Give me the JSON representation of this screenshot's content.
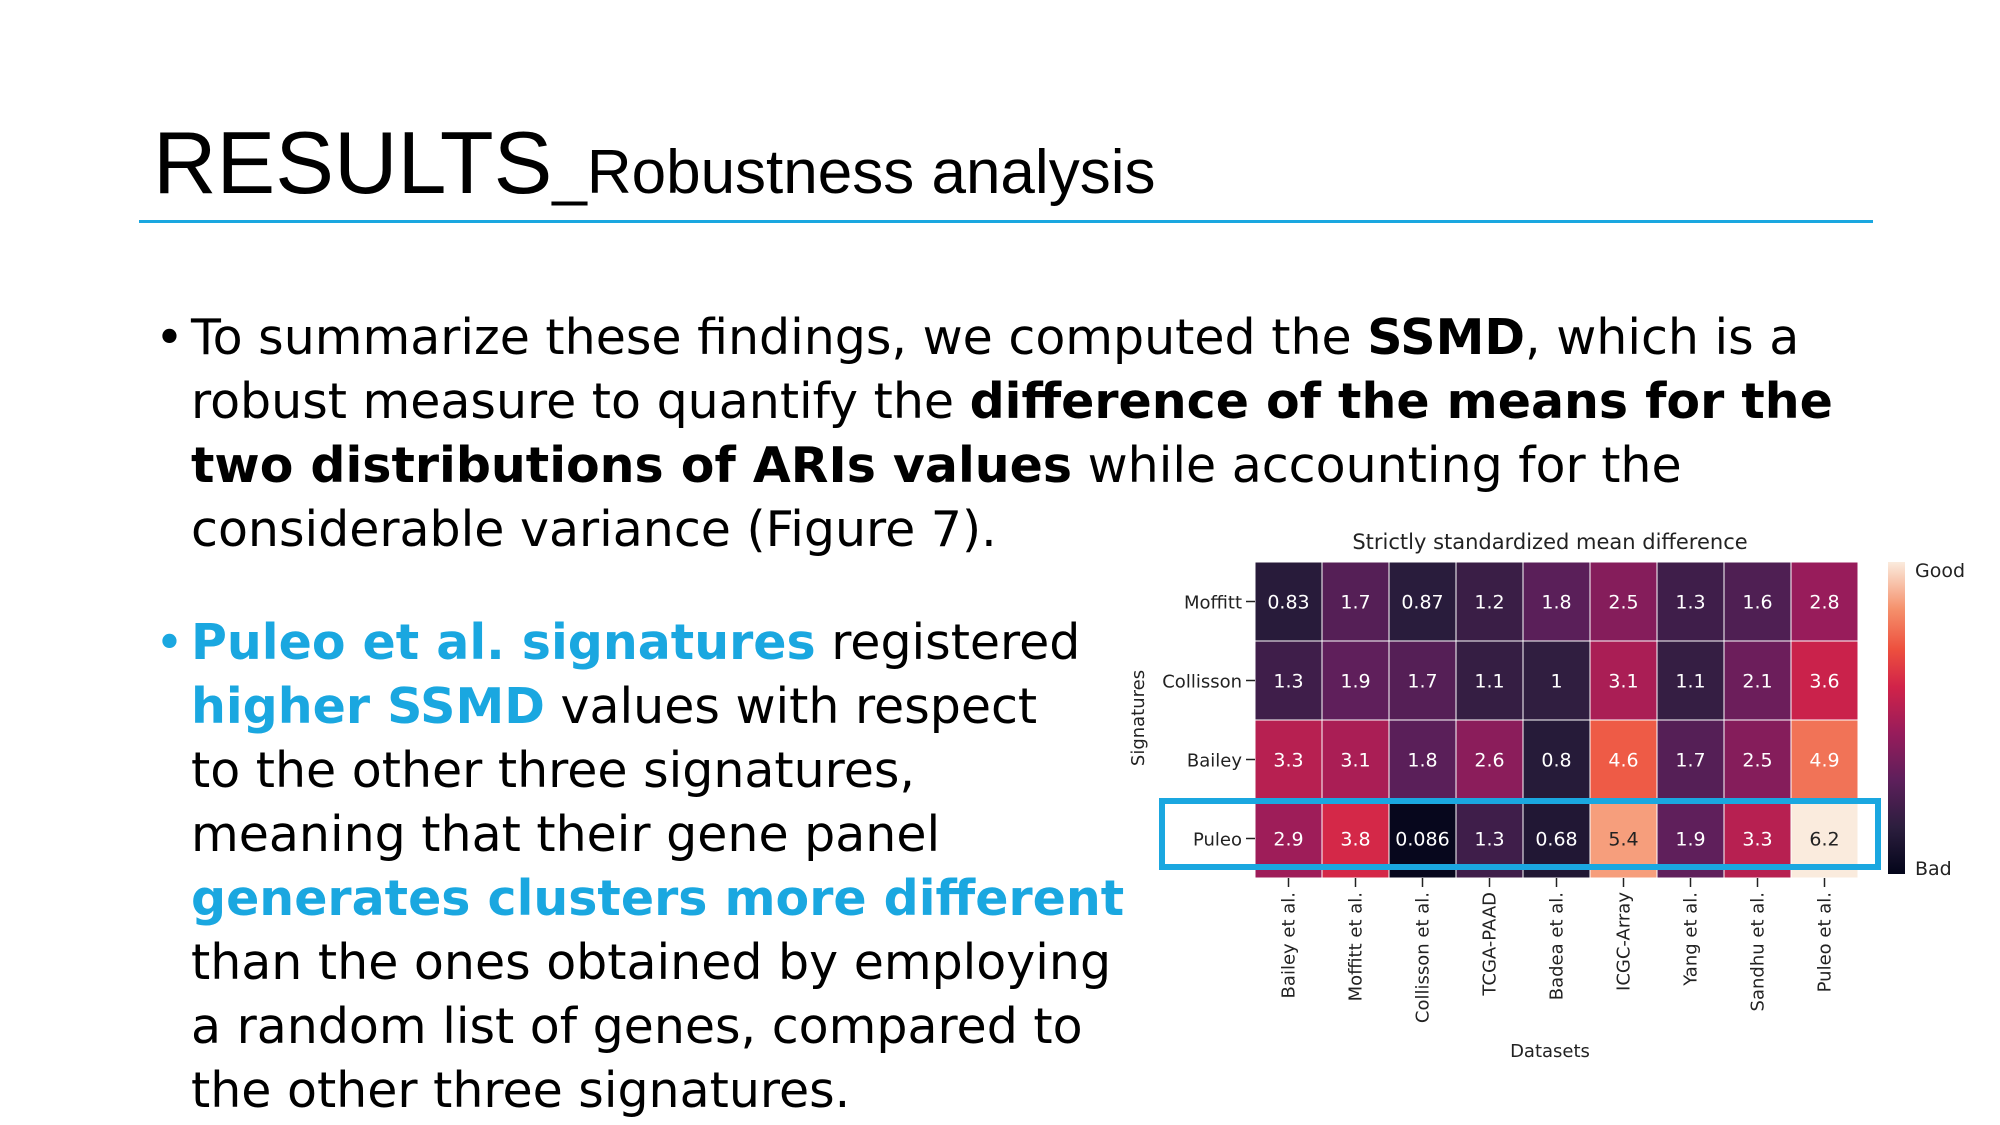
{
  "slide": {
    "title_main": "RESULTS",
    "title_sub": "_Robustness analysis",
    "bullet1": {
      "part1": "To summarize these findings, we computed the ",
      "bold1": "SSMD",
      "part2": ", which is a",
      "line2_a": "robust measure to quantify the ",
      "line2_bold": "difference of the means for the",
      "line3_bold": "two distributions of ARIs values",
      "line3_b": " while accounting for the",
      "line4": "considerable variance (Figure 7)."
    },
    "bullet2": {
      "hl1": "Puleo et al. signatures",
      "t1": " registered",
      "hl2": "higher SSMD",
      "t2": " values with respect",
      "l3": "to the other three signatures,",
      "l4": "meaning that their gene panel",
      "hl3": "generates clusters more different",
      "l6": "than the ones obtained by employing",
      "l7": "a random list of genes, compared to",
      "l8": "the other three signatures."
    },
    "colors": {
      "accent": "#1aa7e0",
      "highlight_box": "#1aa7e0"
    }
  },
  "chart_data": {
    "type": "heatmap",
    "title": "Strictly standardized mean difference",
    "xlabel": "Datasets",
    "ylabel": "Signatures",
    "x": [
      "Bailey et al.",
      "Moffitt et al.",
      "Collisson et al.",
      "TCGA-PAAD",
      "Badea et al.",
      "ICGC-Array",
      "Yang et al.",
      "Sandhu et al.",
      "Puleo et al."
    ],
    "y": [
      "Moffitt",
      "Collisson",
      "Bailey",
      "Puleo"
    ],
    "values": [
      [
        0.83,
        1.7,
        0.87,
        1.2,
        1.8,
        2.5,
        1.3,
        1.6,
        2.8
      ],
      [
        1.3,
        1.9,
        1.7,
        1.1,
        1,
        3.1,
        1.1,
        2.1,
        3.6
      ],
      [
        3.3,
        3.1,
        1.8,
        2.6,
        0.8,
        4.6,
        1.7,
        2.5,
        4.9
      ],
      [
        2.9,
        3.8,
        0.086,
        1.3,
        0.68,
        5.4,
        1.9,
        3.3,
        6.2
      ]
    ],
    "labels": [
      [
        "0.83",
        "1.7",
        "0.87",
        "1.2",
        "1.8",
        "2.5",
        "1.3",
        "1.6",
        "2.8"
      ],
      [
        "1.3",
        "1.9",
        "1.7",
        "1.1",
        "1",
        "3.1",
        "1.1",
        "2.1",
        "3.6"
      ],
      [
        "3.3",
        "3.1",
        "1.8",
        "2.6",
        "0.8",
        "4.6",
        "1.7",
        "2.5",
        "4.9"
      ],
      [
        "2.9",
        "3.8",
        "0.086",
        "1.3",
        "0.68",
        "5.4",
        "1.9",
        "3.3",
        "6.2"
      ]
    ],
    "colorbar": {
      "top_label": "Good",
      "bottom_label": "Bad",
      "colormap": "rocket"
    },
    "highlighted_row": "Puleo"
  }
}
